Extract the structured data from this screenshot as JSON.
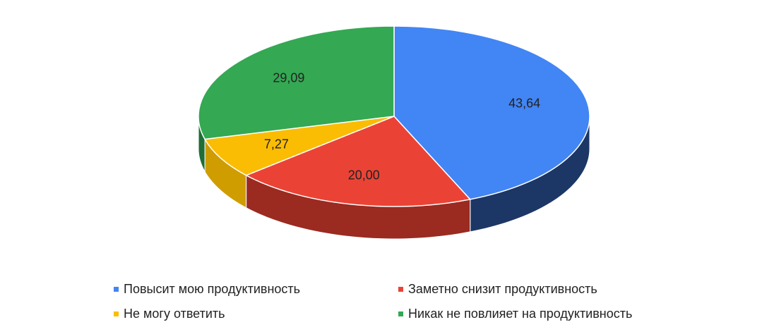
{
  "chart_data": {
    "type": "pie",
    "three_d": true,
    "categories": [
      "Повысит мою продуктивность",
      "Заметно снизит продуктивность",
      "Не могу ответить",
      "Никак не повлияет на продуктивность"
    ],
    "values": [
      43.64,
      20.0,
      7.27,
      29.09
    ],
    "value_labels": [
      "43,64",
      "20,00",
      "7,27",
      "29,09"
    ],
    "colors": [
      "#4285f4",
      "#ea4335",
      "#fbbc04",
      "#34a853"
    ],
    "side_colors": [
      "#1c3766",
      "#9b2a20",
      "#d09d00",
      "#1f6e35"
    ],
    "legend": "bottom"
  }
}
